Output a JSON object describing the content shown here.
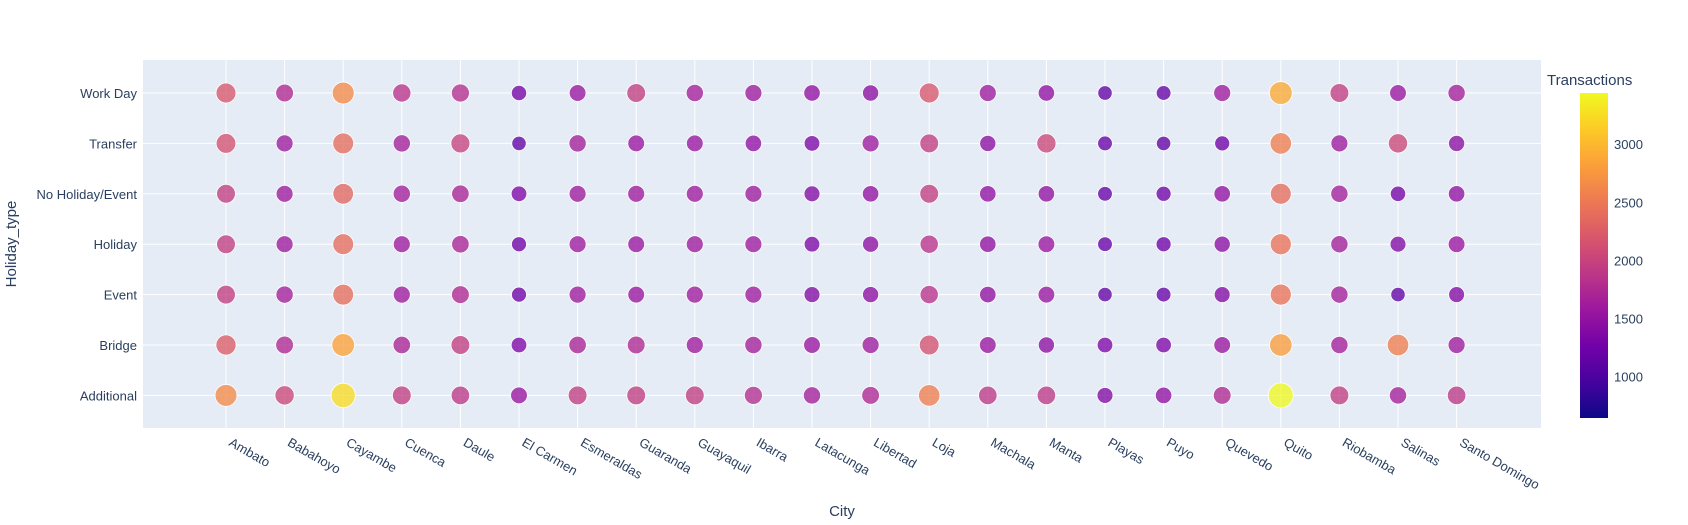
{
  "chart_data": {
    "type": "scatter",
    "title": "",
    "xlabel": "City",
    "ylabel": "Holiday_type",
    "colorbar_title": "Transactions",
    "colorbar_range": [
      650,
      3450
    ],
    "colorbar_ticks": [
      1000,
      1500,
      2000,
      2500,
      3000
    ],
    "colorscale": [
      "#0d0887",
      "#46039f",
      "#7201a8",
      "#9c179e",
      "#bd3786",
      "#d8576b",
      "#ed7953",
      "#fb9f3a",
      "#fdca26",
      "#f0f921"
    ],
    "categories_x": [
      "Ambato",
      "Babahoyo",
      "Cayambe",
      "Cuenca",
      "Daule",
      "El Carmen",
      "Esmeraldas",
      "Guaranda",
      "Guayaquil",
      "Ibarra",
      "Latacunga",
      "Libertad",
      "Loja",
      "Machala",
      "Manta",
      "Playas",
      "Puyo",
      "Quevedo",
      "Quito",
      "Riobamba",
      "Salinas",
      "Santo Domingo"
    ],
    "categories_y": [
      "Additional",
      "Bridge",
      "Event",
      "Holiday",
      "No Holiday/Event",
      "Transfer",
      "Work Day"
    ],
    "series": [
      {
        "holiday_type": "Work Day",
        "values": [
          2200,
          1750,
          2650,
          1850,
          1800,
          1300,
          1550,
          1950,
          1650,
          1600,
          1500,
          1450,
          2200,
          1600,
          1500,
          1150,
          1200,
          1600,
          2900,
          1950,
          1550,
          1650
        ]
      },
      {
        "holiday_type": "Transfer",
        "values": [
          2150,
          1600,
          2400,
          1650,
          2000,
          1150,
          1650,
          1550,
          1550,
          1500,
          1350,
          1600,
          1950,
          1450,
          2050,
          1200,
          1150,
          1250,
          2550,
          1600,
          2050,
          1450
        ]
      },
      {
        "holiday_type": "No Holiday/Event",
        "values": [
          1950,
          1600,
          2350,
          1650,
          1700,
          1350,
          1600,
          1600,
          1600,
          1600,
          1400,
          1500,
          1950,
          1500,
          1500,
          1200,
          1250,
          1500,
          2400,
          1650,
          1300,
          1500
        ]
      },
      {
        "holiday_type": "Holiday",
        "values": [
          1950,
          1600,
          2400,
          1600,
          1700,
          1250,
          1600,
          1550,
          1600,
          1600,
          1350,
          1450,
          1850,
          1500,
          1550,
          1200,
          1250,
          1450,
          2450,
          1650,
          1400,
          1550
        ]
      },
      {
        "holiday_type": "Event",
        "values": [
          1950,
          1650,
          2400,
          1600,
          1750,
          1250,
          1600,
          1550,
          1600,
          1600,
          1400,
          1450,
          1850,
          1500,
          1550,
          1150,
          1200,
          1400,
          2450,
          1650,
          1150,
          1400
        ]
      },
      {
        "holiday_type": "Bridge",
        "values": [
          2250,
          1750,
          2850,
          1700,
          1950,
          1350,
          1700,
          1750,
          1600,
          1650,
          1550,
          1600,
          2150,
          1550,
          1450,
          1350,
          1350,
          1550,
          2800,
          1650,
          2550,
          1600
        ]
      },
      {
        "holiday_type": "Additional",
        "values": [
          2650,
          2050,
          3250,
          1950,
          1900,
          1550,
          1950,
          1950,
          1950,
          1800,
          1650,
          1750,
          2550,
          1900,
          1900,
          1400,
          1500,
          1750,
          3450,
          1950,
          1650,
          1900
        ]
      }
    ]
  }
}
